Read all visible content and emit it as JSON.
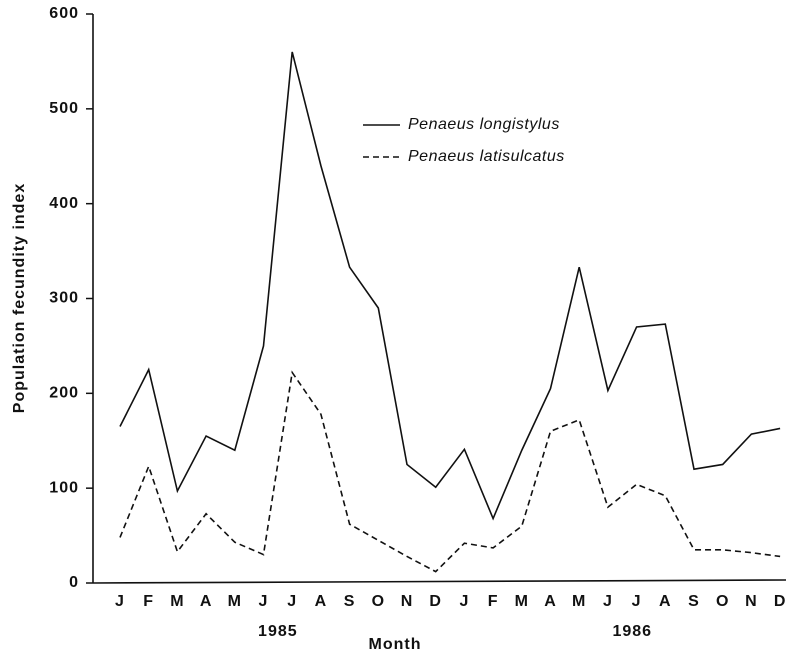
{
  "chart_data": {
    "type": "line",
    "xlabel": "Month",
    "ylabel": "Population  fecundity  index",
    "categories": [
      "J",
      "F",
      "M",
      "A",
      "M",
      "J",
      "J",
      "A",
      "S",
      "O",
      "N",
      "D",
      "J",
      "F",
      "M",
      "A",
      "M",
      "J",
      "J",
      "A",
      "S",
      "O",
      "N",
      "D"
    ],
    "year_labels": [
      "1985",
      "1986"
    ],
    "series": [
      {
        "name": "Penaeus longistylus",
        "color": "#111111",
        "line_style": "solid",
        "values": [
          165,
          225,
          97,
          155,
          140,
          250,
          560,
          440,
          333,
          290,
          125,
          101,
          141,
          68,
          140,
          205,
          333,
          203,
          270,
          273,
          120,
          125,
          157,
          163
        ]
      },
      {
        "name": "Penaeus latisulcatus",
        "color": "#111111",
        "line_style": "dashed",
        "values": [
          48,
          123,
          33,
          73,
          43,
          30,
          222,
          178,
          62,
          45,
          28,
          12,
          42,
          37,
          60,
          160,
          172,
          80,
          104,
          92,
          35,
          35,
          32,
          28
        ]
      }
    ],
    "ylim": [
      0,
      600
    ],
    "yticks": [
      0,
      100,
      200,
      300,
      400,
      500,
      600
    ],
    "grid": false
  }
}
